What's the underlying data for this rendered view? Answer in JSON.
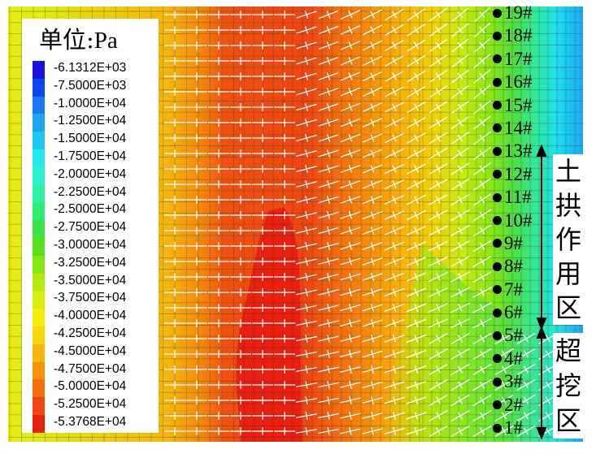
{
  "chart_data": {
    "type": "heatmap",
    "title": "",
    "legend": {
      "title_prefix": "单位",
      "unit": "Pa",
      "placement": "left",
      "labels": [
        "-6.1312E+03",
        "-7.5000E+03",
        "-1.0000E+04",
        "-1.2500E+04",
        "-1.5000E+04",
        "-1.7500E+04",
        "-2.0000E+04",
        "-2.2500E+04",
        "-2.5000E+04",
        "-2.7500E+04",
        "-3.0000E+04",
        "-3.2500E+04",
        "-3.5000E+04",
        "-3.7500E+04",
        "-4.0000E+04",
        "-4.2500E+04",
        "-4.5000E+04",
        "-4.7500E+04",
        "-5.0000E+04",
        "-5.2500E+04",
        "-5.3768E+04"
      ],
      "colors": [
        "#1a10e0",
        "#0a48ee",
        "#1a78f2",
        "#1fa4f4",
        "#1ec8f0",
        "#26e6ee",
        "#2ef0cc",
        "#2ef0a4",
        "#30ec74",
        "#3ce246",
        "#58e01e",
        "#86e614",
        "#b0ea10",
        "#d8ee10",
        "#f2f006",
        "#f6d80a",
        "#f6b60c",
        "#f6920c",
        "#f46e0e",
        "#ee4812",
        "#ea200e"
      ]
    },
    "markers": [
      "1#",
      "2#",
      "3#",
      "4#",
      "5#",
      "6#",
      "7#",
      "8#",
      "9#",
      "10#",
      "11#",
      "12#",
      "13#",
      "14#",
      "15#",
      "16#",
      "17#",
      "18#",
      "19#"
    ],
    "zones": [
      {
        "name": "土拱作用区",
        "chars": [
          "土",
          "拱",
          "作",
          "用",
          "区"
        ],
        "from_marker": "6#",
        "to_marker": "13#"
      },
      {
        "name": "超挖区",
        "chars": [
          "超",
          "挖",
          "区"
        ],
        "from_marker": "1#",
        "to_marker": "5#"
      }
    ],
    "grid": true,
    "vectors": "white principal-stress crosses"
  }
}
